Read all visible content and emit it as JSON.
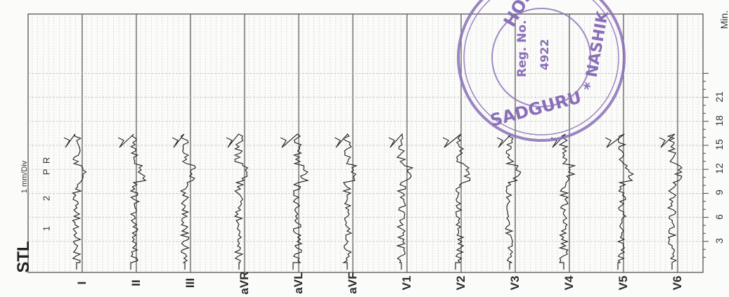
{
  "header": {
    "program": "STL",
    "division": "1 mm/Div",
    "minutes_label": "Min.",
    "pr_label": "P R",
    "scale_marks": [
      "1",
      "2"
    ]
  },
  "time_axis": {
    "ticks": [
      "3",
      "6",
      "9",
      "12",
      "15",
      "18",
      "21"
    ]
  },
  "leads": [
    {
      "name": "I"
    },
    {
      "name": "II"
    },
    {
      "name": "III"
    },
    {
      "name": "aVR"
    },
    {
      "name": "aVL"
    },
    {
      "name": "aVF"
    },
    {
      "name": "V1"
    },
    {
      "name": "V2"
    },
    {
      "name": "V3"
    },
    {
      "name": "V4"
    },
    {
      "name": "V5"
    },
    {
      "name": "V6"
    }
  ],
  "stamp": {
    "ring_top": "HOSP",
    "ring_bottom": "SADGURU",
    "ring_right": "* NASHIK",
    "inner_line1": "Reg. No.",
    "inner_line2": "4922",
    "color": "#8a6fb8"
  },
  "colors": {
    "grid": "#c8c8c8",
    "trace": "#2b2b2b",
    "frame": "#555555"
  }
}
